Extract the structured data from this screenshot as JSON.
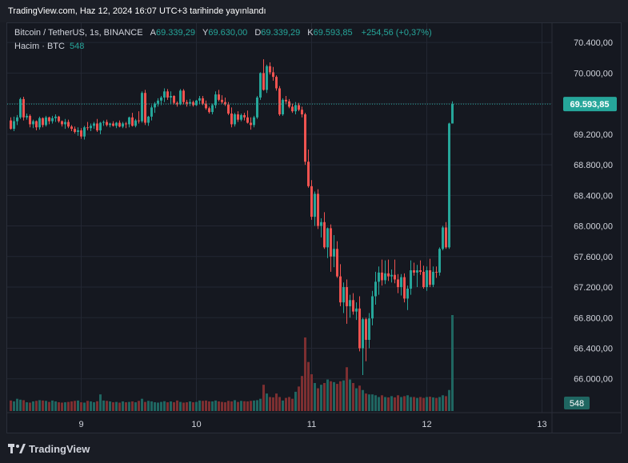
{
  "header": {
    "published": "TradingView.com, Haz 12, 2024 16:07 UTC+3 tarihinde yayınlandı"
  },
  "legend": {
    "symbol": "Bitcoin / TetherUS, 1s, BINANCE",
    "open_label": "A",
    "open": "69.339,29",
    "high_label": "Y",
    "high": "69.630,00",
    "low_label": "D",
    "low": "69.339,29",
    "close_label": "K",
    "close": "69.593,85",
    "change": "+254,56 (+0,37%)",
    "volume_label": "Hacim · BTC",
    "volume": "548"
  },
  "footer": {
    "brand": "TradingView"
  },
  "colors": {
    "up": "#26a69a",
    "down": "#ef5350",
    "up_volume": "#1f6661",
    "down_volume": "#7d2f31",
    "background": "#151820",
    "grid": "#232733"
  },
  "chart_data": {
    "type": "candlestick",
    "y_axis": {
      "ticks": [
        66000,
        66400,
        66800,
        67200,
        67600,
        68000,
        68400,
        68800,
        69200,
        69600,
        70000,
        70400
      ],
      "tick_labels": [
        "66.000,00",
        "66.400,00",
        "66.800,00",
        "67.200,00",
        "67.600,00",
        "68.000,00",
        "68.400,00",
        "68.800,00",
        "69.200,00",
        "69.600,00",
        "70.000,00",
        "70.400,00"
      ],
      "range": [
        65830,
        70600
      ]
    },
    "x_axis": {
      "tick_labels": [
        "9",
        "10",
        "11",
        "12",
        "13"
      ],
      "tick_index": [
        22,
        58,
        94,
        130,
        166
      ]
    },
    "last_price": {
      "value": 69593.85,
      "label": "69.593,85"
    },
    "last_volume": {
      "value": 548,
      "label": "548"
    },
    "candles": [
      [
        69380,
        69420,
        69260,
        69270
      ],
      [
        69270,
        69430,
        69240,
        69370
      ],
      [
        69370,
        69450,
        69320,
        69420
      ],
      [
        69420,
        69680,
        69400,
        69660
      ],
      [
        69660,
        69690,
        69380,
        69420
      ],
      [
        69420,
        69470,
        69390,
        69440
      ],
      [
        69440,
        69460,
        69290,
        69330
      ],
      [
        69330,
        69390,
        69280,
        69370
      ],
      [
        69370,
        69380,
        69250,
        69290
      ],
      [
        69290,
        69430,
        69260,
        69410
      ],
      [
        69410,
        69420,
        69290,
        69320
      ],
      [
        69320,
        69440,
        69300,
        69420
      ],
      [
        69420,
        69430,
        69330,
        69370
      ],
      [
        69370,
        69440,
        69340,
        69410
      ],
      [
        69410,
        69460,
        69360,
        69430
      ],
      [
        69430,
        69440,
        69350,
        69370
      ],
      [
        69370,
        69380,
        69300,
        69330
      ],
      [
        69330,
        69400,
        69270,
        69360
      ],
      [
        69360,
        69390,
        69280,
        69300
      ],
      [
        69300,
        69320,
        69240,
        69270
      ],
      [
        69270,
        69300,
        69210,
        69230
      ],
      [
        69230,
        69290,
        69180,
        69250
      ],
      [
        69250,
        69280,
        69140,
        69170
      ],
      [
        69170,
        69310,
        69130,
        69290
      ],
      [
        69290,
        69360,
        69250,
        69280
      ],
      [
        69280,
        69340,
        69240,
        69310
      ],
      [
        69310,
        69360,
        69270,
        69340
      ],
      [
        69340,
        69400,
        69230,
        69250
      ],
      [
        69250,
        69360,
        69200,
        69350
      ],
      [
        69350,
        69380,
        69310,
        69360
      ],
      [
        69360,
        69390,
        69300,
        69320
      ],
      [
        69320,
        69350,
        69290,
        69340
      ],
      [
        69340,
        69370,
        69300,
        69310
      ],
      [
        69310,
        69360,
        69280,
        69350
      ],
      [
        69350,
        69380,
        69290,
        69300
      ],
      [
        69300,
        69360,
        69280,
        69340
      ],
      [
        69340,
        69360,
        69280,
        69330
      ],
      [
        69330,
        69430,
        69290,
        69420
      ],
      [
        69420,
        69480,
        69300,
        69310
      ],
      [
        69310,
        69400,
        69290,
        69380
      ],
      [
        69380,
        69500,
        69340,
        69370
      ],
      [
        69370,
        69760,
        69350,
        69740
      ],
      [
        69740,
        69780,
        69320,
        69350
      ],
      [
        69350,
        69440,
        69310,
        69430
      ],
      [
        69430,
        69580,
        69380,
        69550
      ],
      [
        69550,
        69620,
        69480,
        69600
      ],
      [
        69600,
        69670,
        69560,
        69640
      ],
      [
        69640,
        69700,
        69580,
        69680
      ],
      [
        69680,
        69800,
        69620,
        69760
      ],
      [
        69760,
        69790,
        69650,
        69680
      ],
      [
        69680,
        69760,
        69600,
        69700
      ],
      [
        69700,
        69710,
        69590,
        69610
      ],
      [
        69610,
        69630,
        69560,
        69590
      ],
      [
        69590,
        69790,
        69580,
        69770
      ],
      [
        69770,
        69790,
        69590,
        69620
      ],
      [
        69620,
        69650,
        69560,
        69600
      ],
      [
        69600,
        69660,
        69570,
        69620
      ],
      [
        69620,
        69640,
        69560,
        69580
      ],
      [
        69580,
        69650,
        69570,
        69640
      ],
      [
        69640,
        69700,
        69590,
        69670
      ],
      [
        69670,
        69700,
        69580,
        69600
      ],
      [
        69600,
        69640,
        69520,
        69540
      ],
      [
        69540,
        69560,
        69470,
        69490
      ],
      [
        69490,
        69600,
        69460,
        69580
      ],
      [
        69580,
        69760,
        69540,
        69720
      ],
      [
        69720,
        69780,
        69630,
        69650
      ],
      [
        69650,
        69710,
        69600,
        69620
      ],
      [
        69620,
        69680,
        69570,
        69590
      ],
      [
        69590,
        69620,
        69450,
        69470
      ],
      [
        69470,
        69550,
        69290,
        69330
      ],
      [
        69330,
        69480,
        69300,
        69460
      ],
      [
        69460,
        69500,
        69360,
        69390
      ],
      [
        69390,
        69470,
        69370,
        69450
      ],
      [
        69450,
        69480,
        69380,
        69420
      ],
      [
        69420,
        69510,
        69340,
        69350
      ],
      [
        69350,
        69420,
        69260,
        69320
      ],
      [
        69320,
        69440,
        69290,
        69420
      ],
      [
        69420,
        69700,
        69400,
        69680
      ],
      [
        69680,
        70010,
        69650,
        70000
      ],
      [
        70000,
        70180,
        69770,
        69780
      ],
      [
        69780,
        70110,
        69740,
        70090
      ],
      [
        70090,
        70140,
        69980,
        70010
      ],
      [
        70010,
        70080,
        69900,
        69950
      ],
      [
        69950,
        69970,
        69770,
        69800
      ],
      [
        69800,
        69830,
        69440,
        69460
      ],
      [
        69460,
        69670,
        69440,
        69650
      ],
      [
        69650,
        69700,
        69600,
        69630
      ],
      [
        69630,
        69660,
        69540,
        69560
      ],
      [
        69560,
        69600,
        69480,
        69500
      ],
      [
        69500,
        69620,
        69460,
        69580
      ],
      [
        69580,
        69610,
        69500,
        69520
      ],
      [
        69520,
        69560,
        69420,
        69460
      ],
      [
        69460,
        69480,
        68800,
        68840
      ],
      [
        68840,
        69000,
        68500,
        68520
      ],
      [
        68520,
        68600,
        68080,
        68120
      ],
      [
        68120,
        68450,
        68000,
        68420
      ],
      [
        68420,
        68480,
        67960,
        68000
      ],
      [
        68000,
        68100,
        67850,
        68050
      ],
      [
        68050,
        68180,
        67700,
        67720
      ],
      [
        67720,
        67980,
        67580,
        67970
      ],
      [
        67970,
        68020,
        67400,
        67600
      ],
      [
        67600,
        67880,
        67460,
        67700
      ],
      [
        67700,
        67800,
        67320,
        67340
      ],
      [
        67340,
        67500,
        66950,
        67000
      ],
      [
        67000,
        67260,
        66860,
        67200
      ],
      [
        67200,
        67300,
        66720,
        66950
      ],
      [
        66950,
        67100,
        66800,
        67030
      ],
      [
        67030,
        67120,
        66840,
        66880
      ],
      [
        66880,
        67000,
        66770,
        66920
      ],
      [
        66920,
        67080,
        66360,
        66400
      ],
      [
        66400,
        66800,
        66050,
        66780
      ],
      [
        66780,
        66800,
        66230,
        66510
      ],
      [
        66510,
        66860,
        66400,
        66790
      ],
      [
        66790,
        67150,
        66700,
        67080
      ],
      [
        67080,
        67400,
        66970,
        67270
      ],
      [
        67270,
        67470,
        67100,
        67390
      ],
      [
        67390,
        67560,
        67220,
        67290
      ],
      [
        67290,
        67550,
        67240,
        67380
      ],
      [
        67380,
        67560,
        67280,
        67340
      ],
      [
        67340,
        67430,
        67260,
        67360
      ],
      [
        67360,
        67560,
        67250,
        67300
      ],
      [
        67300,
        67370,
        67120,
        67200
      ],
      [
        67200,
        67370,
        67090,
        67330
      ],
      [
        67330,
        67380,
        67000,
        67050
      ],
      [
        67050,
        67220,
        66900,
        67180
      ],
      [
        67180,
        67550,
        67100,
        67420
      ],
      [
        67420,
        67520,
        67350,
        67390
      ],
      [
        67390,
        67490,
        67200,
        67420
      ],
      [
        67420,
        67550,
        67360,
        67400
      ],
      [
        67400,
        67480,
        67180,
        67200
      ],
      [
        67200,
        67470,
        67150,
        67420
      ],
      [
        67420,
        67570,
        67200,
        67230
      ],
      [
        67230,
        67470,
        67200,
        67400
      ],
      [
        67400,
        67470,
        67320,
        67390
      ],
      [
        67390,
        67720,
        67350,
        67700
      ],
      [
        67700,
        68000,
        67680,
        67980
      ],
      [
        67980,
        68050,
        67700,
        67720
      ],
      [
        67720,
        69350,
        67700,
        69340
      ],
      [
        69340,
        69630,
        69339,
        69594
      ]
    ],
    "volumes": [
      60,
      55,
      70,
      65,
      62,
      50,
      48,
      55,
      58,
      62,
      60,
      58,
      52,
      60,
      55,
      50,
      48,
      50,
      52,
      55,
      58,
      60,
      50,
      48,
      58,
      55,
      50,
      56,
      95,
      60,
      58,
      55,
      50,
      52,
      48,
      55,
      50,
      52,
      55,
      50,
      58,
      70,
      52,
      58,
      55,
      50,
      48,
      52,
      56,
      50,
      55,
      50,
      60,
      52,
      48,
      50,
      55,
      50,
      52,
      60,
      58,
      60,
      55,
      55,
      60,
      55,
      52,
      50,
      58,
      55,
      62,
      52,
      58,
      56,
      55,
      58,
      60,
      62,
      70,
      150,
      100,
      80,
      78,
      100,
      80,
      60,
      75,
      80,
      70,
      110,
      140,
      200,
      420,
      280,
      210,
      160,
      130,
      150,
      160,
      180,
      170,
      165,
      155,
      170,
      175,
      250,
      180,
      160,
      130,
      145,
      120,
      100,
      95,
      95,
      90,
      80,
      90,
      80,
      78,
      85,
      78,
      90,
      80,
      85,
      90,
      80,
      80,
      75,
      80,
      75,
      80,
      82,
      78,
      75,
      80,
      90,
      85,
      120,
      548
    ],
    "volume_scale_max": 548
  }
}
